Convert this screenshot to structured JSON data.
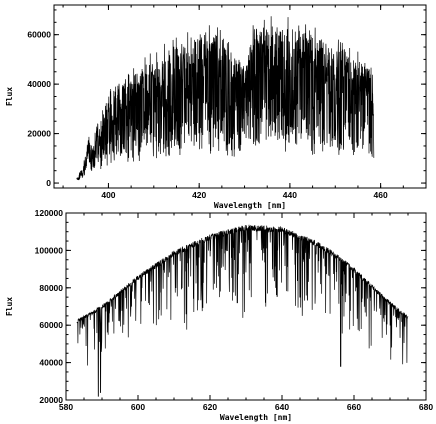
{
  "chart_data": [
    {
      "type": "line",
      "xlabel": "Wavelength [nm]",
      "ylabel": "Flux",
      "xlim": [
        388,
        470
      ],
      "ylim": [
        -2000,
        72000
      ],
      "xticks": [
        400,
        420,
        440,
        460
      ],
      "yticks": [
        0,
        20000,
        40000,
        60000
      ],
      "xtick_labels": [
        "400",
        "420",
        "440",
        "460"
      ],
      "ytick_labels": [
        "0",
        "20000",
        "40000",
        "60000"
      ],
      "x_range_data": [
        393.0,
        458.5
      ],
      "continuum": [
        [
          393.0,
          2000
        ],
        [
          394.5,
          8000
        ],
        [
          395.5,
          20000
        ],
        [
          396.5,
          14000
        ],
        [
          397.0,
          22000
        ],
        [
          398.5,
          25000
        ],
        [
          400.0,
          34000
        ],
        [
          405.0,
          42000
        ],
        [
          410.0,
          48000
        ],
        [
          415.0,
          53000
        ],
        [
          420.0,
          57000
        ],
        [
          425.0,
          59000
        ],
        [
          428.0,
          48000
        ],
        [
          430.0,
          45000
        ],
        [
          432.0,
          60000
        ],
        [
          435.0,
          61000
        ],
        [
          440.0,
          60000
        ],
        [
          445.0,
          57000
        ],
        [
          450.0,
          53000
        ],
        [
          455.0,
          48000
        ],
        [
          458.5,
          44000
        ]
      ],
      "grid": false,
      "legend": "none"
    },
    {
      "type": "line",
      "xlabel": "Wavelength [nm]",
      "ylabel": "Flux",
      "xlim": [
        580,
        680
      ],
      "ylim": [
        20000,
        120000
      ],
      "xticks": [
        580,
        600,
        620,
        640,
        660,
        680
      ],
      "yticks": [
        20000,
        40000,
        60000,
        80000,
        100000,
        120000
      ],
      "xtick_labels": [
        "580",
        "600",
        "620",
        "640",
        "660",
        "680"
      ],
      "ytick_labels": [
        "20000",
        "40000",
        "60000",
        "80000",
        "100000",
        "120000"
      ],
      "x_range_data": [
        583.0,
        675.0
      ],
      "continuum": [
        [
          583.0,
          64000
        ],
        [
          590.0,
          72000
        ],
        [
          600.0,
          88000
        ],
        [
          610.0,
          101000
        ],
        [
          620.0,
          110000
        ],
        [
          630.0,
          115000
        ],
        [
          640.0,
          114000
        ],
        [
          650.0,
          106000
        ],
        [
          656.3,
          98000
        ],
        [
          660.0,
          92000
        ],
        [
          670.0,
          74000
        ],
        [
          675.0,
          66000
        ]
      ],
      "deep_lines": [
        [
          588.99,
          22000
        ],
        [
          589.59,
          24000
        ],
        [
          656.28,
          38000
        ],
        [
          645.0,
          75000
        ],
        [
          627.6,
          72000
        ],
        [
          612.2,
          80000
        ]
      ],
      "grid": false,
      "legend": "none"
    }
  ]
}
